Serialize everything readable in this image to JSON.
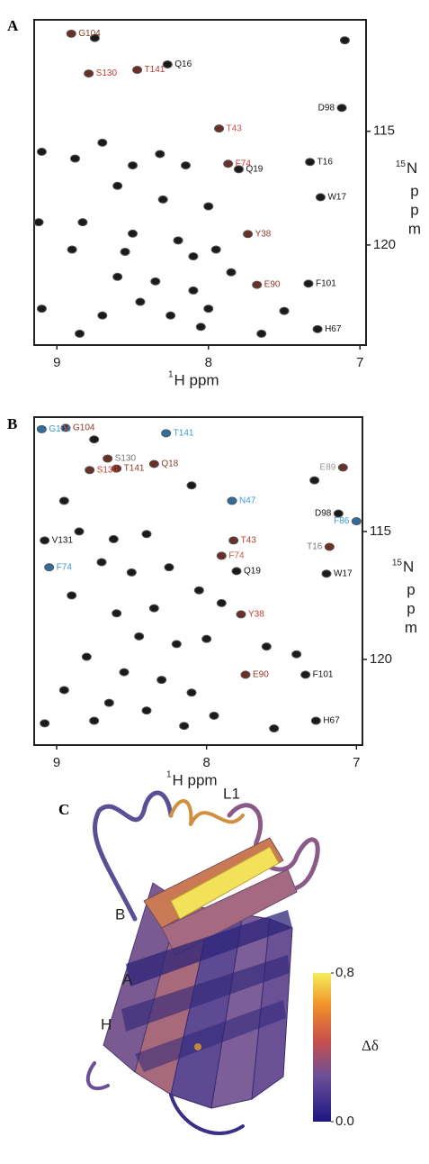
{
  "panels": [
    {
      "label": "A",
      "xlabel_sup": "1",
      "xlabel": "H ppm",
      "ylabel_sup": "15",
      "ylabel": "N",
      "ylabel_unit": "ppm",
      "xlim": [
        9.15,
        6.96
      ],
      "ylim": [
        110.1,
        124.4
      ],
      "xticks": [
        9,
        8,
        7
      ],
      "yticks": [
        115,
        120
      ],
      "labeled_peaks": [
        {
          "label": "G104",
          "x": 8.905,
          "y": 110.71,
          "color": "#8b3a2a"
        },
        {
          "label": "S130",
          "x": 8.79,
          "y": 112.46,
          "color": "#c0392b"
        },
        {
          "label": "T141",
          "x": 8.47,
          "y": 112.3,
          "color": "#c0392b"
        },
        {
          "label": "Q16",
          "x": 8.27,
          "y": 112.06,
          "color": "#111111"
        },
        {
          "label": "T43",
          "x": 7.93,
          "y": 114.88,
          "color": "#d0504a"
        },
        {
          "label": "D98",
          "x": 7.12,
          "y": 113.97,
          "color": "#111111"
        },
        {
          "label": "F74",
          "x": 7.87,
          "y": 116.43,
          "color": "#c0392b"
        },
        {
          "label": "Q19",
          "x": 7.8,
          "y": 116.67,
          "color": "#111111"
        },
        {
          "label": "T16",
          "x": 7.33,
          "y": 116.35,
          "color": "#111111"
        },
        {
          "label": "W17",
          "x": 7.26,
          "y": 117.9,
          "color": "#111111"
        },
        {
          "label": "Y38",
          "x": 7.74,
          "y": 119.52,
          "color": "#8b3a2a"
        },
        {
          "label": "F101",
          "x": 7.34,
          "y": 121.7,
          "color": "#111111"
        },
        {
          "label": "E90",
          "x": 7.68,
          "y": 121.75,
          "color": "#8b3a2a"
        },
        {
          "label": "H67",
          "x": 7.28,
          "y": 123.7,
          "color": "#111111"
        }
      ],
      "peaks": [
        {
          "x": 8.75,
          "y": 110.9
        },
        {
          "x": 7.1,
          "y": 111.0
        },
        {
          "x": 9.1,
          "y": 115.9
        },
        {
          "x": 8.88,
          "y": 116.2
        },
        {
          "x": 8.7,
          "y": 115.5
        },
        {
          "x": 8.5,
          "y": 116.5
        },
        {
          "x": 8.32,
          "y": 116.0
        },
        {
          "x": 8.15,
          "y": 116.5
        },
        {
          "x": 8.6,
          "y": 117.4
        },
        {
          "x": 8.3,
          "y": 118.0
        },
        {
          "x": 8.0,
          "y": 118.3
        },
        {
          "x": 8.83,
          "y": 119.0
        },
        {
          "x": 8.5,
          "y": 119.5
        },
        {
          "x": 8.2,
          "y": 119.8
        },
        {
          "x": 8.1,
          "y": 120.5
        },
        {
          "x": 7.95,
          "y": 120.2
        },
        {
          "x": 7.85,
          "y": 121.2
        },
        {
          "x": 8.9,
          "y": 120.2
        },
        {
          "x": 8.6,
          "y": 121.4
        },
        {
          "x": 8.35,
          "y": 121.6
        },
        {
          "x": 8.1,
          "y": 122.0
        },
        {
          "x": 8.0,
          "y": 122.8
        },
        {
          "x": 8.25,
          "y": 123.1
        },
        {
          "x": 9.1,
          "y": 122.8
        },
        {
          "x": 8.7,
          "y": 123.1
        },
        {
          "x": 7.5,
          "y": 122.9
        },
        {
          "x": 9.12,
          "y": 119.0
        },
        {
          "x": 8.45,
          "y": 122.5
        },
        {
          "x": 8.05,
          "y": 123.6
        },
        {
          "x": 7.65,
          "y": 123.9
        },
        {
          "x": 8.85,
          "y": 123.9
        },
        {
          "x": 8.55,
          "y": 120.3
        }
      ]
    },
    {
      "label": "B",
      "xlabel_sup": "1",
      "xlabel": "H ppm",
      "ylabel_sup": "15",
      "ylabel": "N",
      "ylabel_unit": "ppm",
      "xlim": [
        9.15,
        6.96
      ],
      "ylim": [
        110.53,
        123.35
      ],
      "xticks": [
        9,
        8,
        7
      ],
      "yticks": [
        115,
        120
      ],
      "labeled_peaks": [
        {
          "label": "G104",
          "x": 8.94,
          "y": 110.95,
          "color": "#8b3a2a"
        },
        {
          "label": "G104",
          "x": 9.1,
          "y": 111.0,
          "color": "#3a9ad9"
        },
        {
          "label": "S130",
          "x": 8.66,
          "y": 112.15,
          "color": "#777777"
        },
        {
          "label": "S130",
          "x": 8.78,
          "y": 112.6,
          "color": "#c0392b"
        },
        {
          "label": "T141",
          "x": 8.27,
          "y": 111.16,
          "color": "#3a9ad9"
        },
        {
          "label": "T141",
          "x": 8.6,
          "y": 112.54,
          "color": "#8b3a2a"
        },
        {
          "label": "Q18",
          "x": 8.35,
          "y": 112.36,
          "color": "#8b3a2a"
        },
        {
          "label": "N47",
          "x": 7.83,
          "y": 113.8,
          "color": "#3a9ad9"
        },
        {
          "label": "T43",
          "x": 7.82,
          "y": 115.35,
          "color": "#c0392b"
        },
        {
          "label": "F74",
          "x": 7.9,
          "y": 115.95,
          "color": "#d0504a"
        },
        {
          "label": "Q19",
          "x": 7.8,
          "y": 116.55,
          "color": "#111111"
        },
        {
          "label": "D98",
          "x": 7.12,
          "y": 114.3,
          "color": "#111111"
        },
        {
          "label": "F86",
          "x": 7.0,
          "y": 114.6,
          "color": "#3a9ad9"
        },
        {
          "label": "E89",
          "x": 7.09,
          "y": 112.5,
          "color": "#999999"
        },
        {
          "label": "T16",
          "x": 7.18,
          "y": 115.6,
          "color": "#777777"
        },
        {
          "label": "W17",
          "x": 7.2,
          "y": 116.65,
          "color": "#111111"
        },
        {
          "label": "Y38",
          "x": 7.77,
          "y": 118.24,
          "color": "#c0392b"
        },
        {
          "label": "F101",
          "x": 7.34,
          "y": 120.6,
          "color": "#111111"
        },
        {
          "label": "E90",
          "x": 7.74,
          "y": 120.6,
          "color": "#8b3a2a"
        },
        {
          "label": "H67",
          "x": 7.27,
          "y": 122.4,
          "color": "#111111"
        },
        {
          "label": "V131",
          "x": 9.08,
          "y": 115.35,
          "color": "#111111"
        },
        {
          "label": "F74",
          "x": 9.05,
          "y": 116.4,
          "color": "#3a9ad9"
        }
      ],
      "peaks": [
        {
          "x": 8.75,
          "y": 111.4
        },
        {
          "x": 8.85,
          "y": 115.0
        },
        {
          "x": 8.62,
          "y": 115.3
        },
        {
          "x": 8.4,
          "y": 115.1
        },
        {
          "x": 8.7,
          "y": 116.2
        },
        {
          "x": 8.5,
          "y": 116.6
        },
        {
          "x": 8.25,
          "y": 116.4
        },
        {
          "x": 8.05,
          "y": 117.3
        },
        {
          "x": 8.9,
          "y": 117.5
        },
        {
          "x": 8.6,
          "y": 118.2
        },
        {
          "x": 8.35,
          "y": 118.0
        },
        {
          "x": 8.45,
          "y": 119.1
        },
        {
          "x": 8.2,
          "y": 119.4
        },
        {
          "x": 8.0,
          "y": 119.2
        },
        {
          "x": 8.8,
          "y": 119.9
        },
        {
          "x": 8.55,
          "y": 120.5
        },
        {
          "x": 8.3,
          "y": 120.8
        },
        {
          "x": 8.1,
          "y": 121.3
        },
        {
          "x": 7.95,
          "y": 122.2
        },
        {
          "x": 8.65,
          "y": 121.7
        },
        {
          "x": 8.95,
          "y": 121.2
        },
        {
          "x": 9.08,
          "y": 122.5
        },
        {
          "x": 8.75,
          "y": 122.4
        },
        {
          "x": 8.4,
          "y": 122.0
        },
        {
          "x": 7.55,
          "y": 122.7
        },
        {
          "x": 7.9,
          "y": 117.8
        },
        {
          "x": 7.6,
          "y": 119.5
        },
        {
          "x": 7.4,
          "y": 119.8
        },
        {
          "x": 8.15,
          "y": 122.6
        },
        {
          "x": 7.28,
          "y": 113.0
        },
        {
          "x": 8.1,
          "y": 113.2
        },
        {
          "x": 8.95,
          "y": 113.8
        }
      ]
    }
  ],
  "structure": {
    "label": "C",
    "region_labels": [
      "L1",
      "B",
      "A",
      "H"
    ],
    "colorbar": {
      "label": "Δδ",
      "lim": [
        0,
        0.8
      ],
      "ticks": [
        {
          "value": 0.8,
          "label": "0,8"
        },
        {
          "value": 0,
          "label": "0.0"
        }
      ]
    }
  }
}
